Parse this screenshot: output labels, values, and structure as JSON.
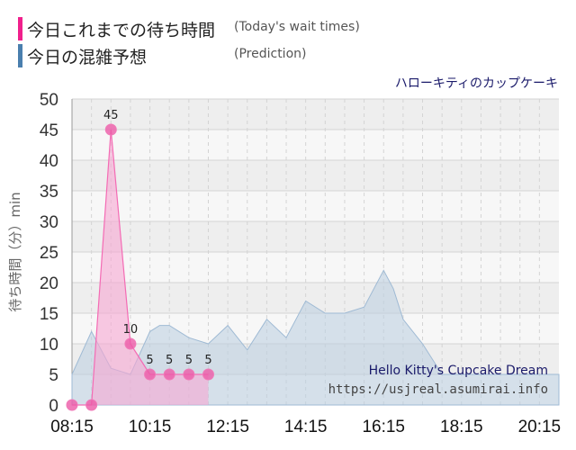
{
  "legend": {
    "today": {
      "label": "今日これまでの待ち時間",
      "note": "(Today's wait times)",
      "color": "#f0208c"
    },
    "prediction": {
      "label": "今日の混雑予想",
      "note": "(Prediction)",
      "color": "#4a7fae"
    }
  },
  "ride_name": "ハローキティのカップケーキ",
  "watermark": {
    "title": "Hello Kitty's Cupcake Dream",
    "url": "https://usjreal.asumirai.info"
  },
  "chart_data": {
    "type": "area",
    "ylabel": "待ち時間（分）min",
    "ylim": [
      0,
      50
    ],
    "y_ticks": [
      0,
      5,
      10,
      15,
      20,
      25,
      30,
      35,
      40,
      45,
      50
    ],
    "xlim": [
      "08:15",
      "20:45"
    ],
    "x_tick_labels": [
      "08:15",
      "10:15",
      "12:15",
      "14:15",
      "16:15",
      "18:15",
      "20:15"
    ],
    "series": [
      {
        "name": "今日の混雑予想",
        "color": "#b9cde0",
        "x": [
          "08:15",
          "08:45",
          "09:15",
          "09:45",
          "10:15",
          "10:30",
          "10:45",
          "11:00",
          "11:15",
          "11:45",
          "12:15",
          "12:45",
          "13:15",
          "13:45",
          "14:15",
          "14:45",
          "15:15",
          "15:45",
          "16:15",
          "16:30",
          "16:45",
          "17:15",
          "17:45",
          "18:15",
          "18:45",
          "19:15",
          "19:45",
          "20:15",
          "20:45"
        ],
        "values": [
          5,
          12,
          6,
          5,
          12,
          13,
          13,
          12,
          11,
          10,
          13,
          9,
          14,
          11,
          17,
          15,
          15,
          16,
          22,
          19,
          14,
          10,
          5,
          5,
          5,
          5,
          5,
          5,
          5
        ]
      },
      {
        "name": "今日これまでの待ち時間",
        "color": "#f46bb4",
        "x": [
          "08:15",
          "08:45",
          "09:15",
          "09:45",
          "10:15",
          "10:45",
          "11:15",
          "11:45"
        ],
        "values": [
          0,
          0,
          45,
          10,
          5,
          5,
          5,
          5
        ]
      }
    ]
  }
}
